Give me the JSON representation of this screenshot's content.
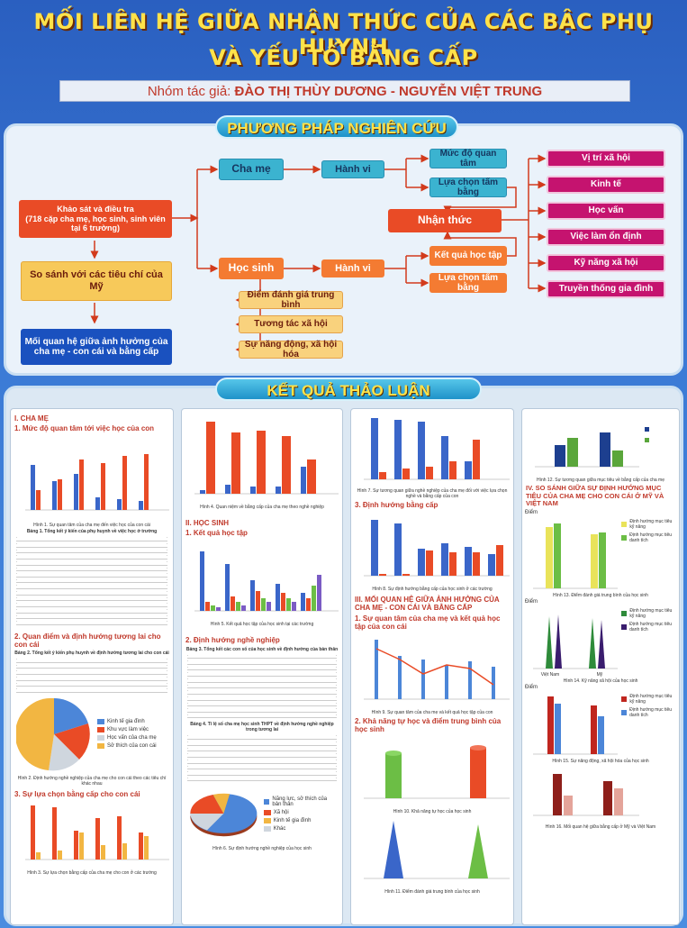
{
  "title_line1": "MỐI LIÊN HỆ GIỮA NHẬN THỨC CỦA CÁC BẬC PHỤ HUYNH",
  "title_line2": "VÀ YẾU TỐ BẰNG CẤP",
  "authors_prefix": "Nhóm tác giả: ",
  "authors_names": "ĐÀO THỊ THÙY DƯƠNG - NGUYỄN VIỆT TRUNG",
  "methods": {
    "banner": "PHƯƠNG PHÁP NGHIÊN CỨU",
    "survey": "Khảo sát và điều tra\n(718 cặp cha mẹ, học sinh, sinh viên tại 6 trường)",
    "compare": "So sánh với các tiêu chí của Mỹ",
    "relation": "Mối quan hệ giữa ảnh hưởng của cha mẹ - con cái và bằng cấp",
    "parents": "Cha mẹ",
    "student": "Học sinh",
    "behavior": "Hành vi",
    "care": "Mức độ quan tâm",
    "choose_degree": "Lựa chọn tấm bằng",
    "perception": "Nhận thức",
    "study_result": "Kết quả học tập",
    "gpa": "Điểm đánh giá trung bình",
    "social_interaction": "Tương tác xã hội",
    "dynamism": "Sự năng động, xã hội hóa",
    "outcomes": [
      "Vị trí xã hội",
      "Kinh tế",
      "Học vấn",
      "Việc làm ổn định",
      "Kỹ năng xã hội",
      "Truyền thống gia đình"
    ]
  },
  "results": {
    "banner": "KẾT QUẢ THẢO LUẬN",
    "col1": {
      "h1": "I. CHA MẸ",
      "h1a": "1. Mức độ quan tâm tới việc học của con",
      "fig1": "Hình 1. Sự quan tâm của cha mẹ đến việc học của con cái",
      "tab1": "Bảng 1. Tổng kết ý kiến của phụ huynh về việc học ở trường",
      "h2": "2. Quan điểm và định hướng tương lai cho con cái",
      "tab2": "Bảng 2. Tổng kết ý kiến phụ huynh về định hướng tương lai cho con cái",
      "pie_legend": [
        "Kinh tế gia đình",
        "Khu vực làm việc",
        "Học vấn của cha mẹ",
        "Sở thích của con cái"
      ],
      "fig2": "Hình 2. Định hướng nghề nghiệp của cha mẹ cho con cái theo các tiêu chí khác nhau",
      "h3": "3. Sự lựa chọn bằng cấp cho con cái",
      "fig3": "Hình 3. Sự lựa chọn bằng cấp của cha mẹ cho con ở các trường"
    },
    "col2": {
      "fig4": "Hình 4. Quan niệm về bằng cấp của cha mẹ theo nghề nghiệp",
      "h1": "II. HỌC SINH",
      "h1a": "1. Kết quả học tập",
      "fig5": "Hình 5. Kết quả học tập của học sinh tại các trường",
      "h2": "2. Định hướng nghề nghiệp",
      "tab3": "Bảng 3. Tổng kết các con số của học sinh về định hướng của bản thân",
      "tab4": "Bảng 4. Tỉ lệ số cha mẹ học sinh THPT về định hướng nghề nghiệp trong tương lai",
      "pie_legend": [
        "Năng lực, sở thích của bản thân",
        "Xã hội",
        "Kinh tế gia đình",
        "Khác"
      ],
      "fig6": "Hình 6. Sự định hướng nghề nghiệp của học sinh"
    },
    "col3": {
      "fig7": "Hình 7. Sự tương quan giữa nghề nghiệp của cha mẹ đối với việc lựa chọn nghề và bằng cấp của con",
      "h3": "3. Định hướng bằng cấp",
      "fig8": "Hình 8. Sự định hướng bằng cấp của học sinh ở các trường",
      "h4": "III. MỐI QUAN HỆ GIỮA ẢNH HƯỞNG CỦA CHA MẸ - CON CÁI VÀ BẰNG CẤP",
      "h4a": "1. Sự quan tâm của cha mẹ và kết quả học tập của con cái",
      "fig9": "Hình 9. Sự quan tâm của cha mẹ và kết quả học tập của con",
      "h4b": "2. Khả năng tự học và điểm trung bình của học sinh",
      "fig10": "Hình 10. Khả năng tự học của học sinh",
      "fig11": "Hình 11. Điểm đánh giá trung bình của học sinh"
    },
    "col4": {
      "fig12": "Hình 12. Sự tương quan giữa mục tiêu về bằng cấp của cha mẹ",
      "h1": "IV. SO SÁNH GIỮA SỰ ĐỊNH HƯỚNG MỤC TIÊU CỦA CHA MẸ CHO CON CÁI Ở MỸ VÀ VIỆT NAM",
      "diem": "Điểm",
      "legend13": [
        "Định hướng mục tiêu kỹ năng",
        "Định hướng mục tiêu danh tích"
      ],
      "x_labels": [
        "Việt Nam",
        "Mỹ"
      ],
      "fig13": "Hình 13. Điểm đánh giá trung bình của học sinh",
      "fig14": "Hình 14. Kỹ năng xã hội của học sinh",
      "fig15": "Hình 15. Sự năng động, xã hội hóa của học sinh",
      "fig16": "Hình 16. Mối quan hệ giữa bằng cấp ở Mỹ và Việt Nam"
    }
  },
  "colors": {
    "title": "#ffe24a",
    "red_bar": "#e94b26",
    "blue_bar": "#3a66c9",
    "green_bar": "#6cbe45",
    "purple": "#3a1d6e"
  }
}
